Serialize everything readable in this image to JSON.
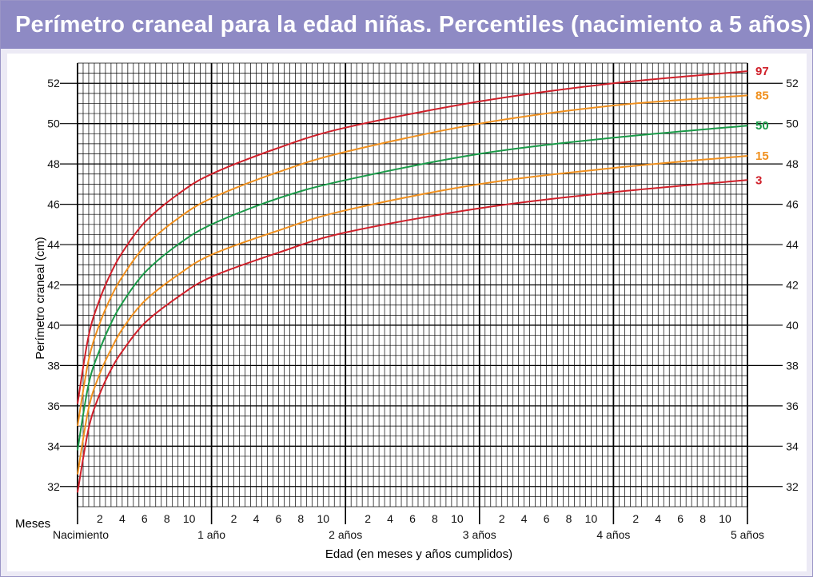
{
  "title": "Perímetro craneal para la edad niñas. Percentiles (nacimiento a 5 años)",
  "colors": {
    "header_bg": "#8e8ac4",
    "frame_bg": "#eceaf5",
    "p97": "#d0202a",
    "p85": "#f0901e",
    "p50": "#1a9a48",
    "p15": "#f0901e",
    "p3": "#d0202a"
  },
  "chart_data": {
    "type": "line",
    "title": "Perímetro craneal para la edad niñas. Percentiles (nacimiento a 5 años)",
    "xlabel": "Edad (en meses y años cumplidos)",
    "ylabel": "Perímetro craneal (cm)",
    "xlim": [
      0,
      60
    ],
    "ylim": [
      31,
      53
    ],
    "grid": true,
    "y_ticks": [
      32,
      34,
      36,
      38,
      40,
      42,
      44,
      46,
      48,
      50,
      52
    ],
    "x_months_label": "Meses",
    "x_month_ticks": [
      "2",
      "4",
      "6",
      "8",
      "10"
    ],
    "x_year_ticks": [
      {
        "month": 0,
        "label": "Nacimiento"
      },
      {
        "month": 12,
        "label": "1 año"
      },
      {
        "month": 24,
        "label": "2 años"
      },
      {
        "month": 36,
        "label": "3 años"
      },
      {
        "month": 48,
        "label": "4 años"
      },
      {
        "month": 60,
        "label": "5 años"
      }
    ],
    "x": [
      0,
      1,
      2,
      3,
      4,
      6,
      9,
      12,
      18,
      24,
      36,
      48,
      60
    ],
    "series": [
      {
        "name": "97",
        "color": "#d0202a",
        "values": [
          36.1,
          39.5,
          41.3,
          42.6,
          43.6,
          45.1,
          46.5,
          47.5,
          48.8,
          49.8,
          51.1,
          52.0,
          52.6
        ]
      },
      {
        "name": "85",
        "color": "#f0901e",
        "values": [
          35.0,
          38.3,
          40.1,
          41.4,
          42.4,
          43.9,
          45.3,
          46.3,
          47.6,
          48.6,
          50.0,
          50.9,
          51.4
        ]
      },
      {
        "name": "50",
        "color": "#1a9a48",
        "values": [
          33.8,
          37.1,
          38.8,
          40.1,
          41.1,
          42.6,
          44.0,
          45.0,
          46.3,
          47.2,
          48.5,
          49.3,
          49.9
        ]
      },
      {
        "name": "15",
        "color": "#f0901e",
        "values": [
          32.6,
          35.9,
          37.6,
          38.8,
          39.8,
          41.2,
          42.5,
          43.5,
          44.7,
          45.7,
          47.0,
          47.8,
          48.4
        ]
      },
      {
        "name": "3",
        "color": "#d0202a",
        "values": [
          31.7,
          34.9,
          36.6,
          37.8,
          38.7,
          40.1,
          41.4,
          42.4,
          43.6,
          44.6,
          45.8,
          46.6,
          47.2
        ]
      }
    ]
  }
}
